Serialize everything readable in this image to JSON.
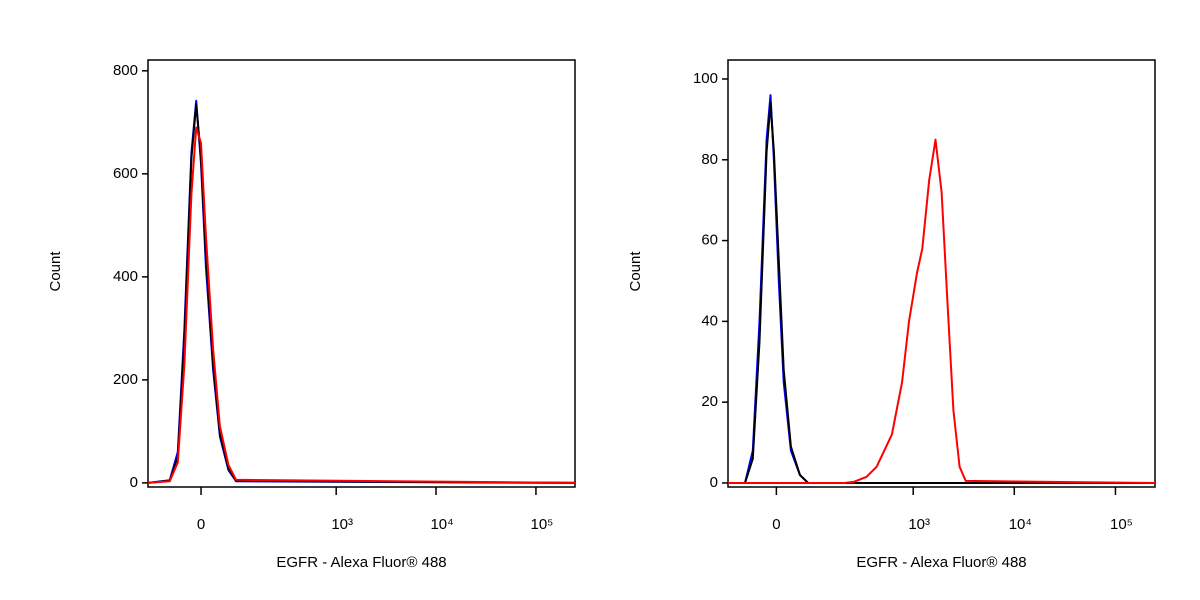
{
  "chart_data": [
    {
      "type": "line",
      "x_label": "EGFR - Alexa Fluor® 488",
      "y_label": "Count",
      "xscale": "asinh",
      "asinh_cofactor": 89,
      "xlim": [
        -138,
        246000
      ],
      "ylim": [
        -8,
        821
      ],
      "xticks": [
        0,
        {
          "value": 1000,
          "label": "10³"
        },
        {
          "value": 10000,
          "label": "10⁴"
        },
        {
          "value": 100000,
          "label": "10⁵"
        }
      ],
      "yticks": [
        0,
        200,
        400,
        600,
        800
      ],
      "series": [
        {
          "color": "#0000ff",
          "x": [
            -138,
            -70,
            -50,
            -35,
            -20,
            -10,
            0,
            10,
            25,
            40,
            60,
            80,
            246000
          ],
          "values": [
            0,
            5,
            60,
            300,
            640,
            742,
            620,
            420,
            220,
            90,
            25,
            3,
            0
          ]
        },
        {
          "color": "#000000",
          "x": [
            -138,
            -70,
            -50,
            -35,
            -20,
            -10,
            0,
            10,
            25,
            40,
            60,
            80,
            246000
          ],
          "values": [
            0,
            4,
            50,
            280,
            630,
            735,
            630,
            440,
            230,
            95,
            28,
            4,
            0
          ]
        },
        {
          "color": "#ff0000",
          "x": [
            -138,
            -70,
            -50,
            -35,
            -20,
            -10,
            0,
            10,
            25,
            40,
            60,
            80,
            246000
          ],
          "values": [
            0,
            3,
            40,
            230,
            560,
            690,
            660,
            480,
            260,
            110,
            35,
            6,
            0
          ]
        }
      ]
    },
    {
      "type": "line",
      "x_label": "EGFR - Alexa Fluor® 488",
      "y_label": "Count",
      "xscale": "asinh",
      "asinh_cofactor": 89,
      "xlim": [
        -119,
        246000
      ],
      "ylim": [
        -1,
        104.7
      ],
      "xticks": [
        0,
        {
          "value": 1000,
          "label": "10³"
        },
        {
          "value": 10000,
          "label": "10⁴"
        },
        {
          "value": 100000,
          "label": "10⁵"
        }
      ],
      "yticks": [
        0,
        20,
        40,
        60,
        80,
        100
      ],
      "series": [
        {
          "color": "#0000ff",
          "x": [
            -119,
            -69,
            -50,
            -35,
            -20,
            -12,
            -5,
            5,
            15,
            30,
            50,
            70,
            246000
          ],
          "values": [
            0,
            0,
            8,
            40,
            85,
            96,
            80,
            50,
            25,
            8,
            2,
            0,
            0
          ]
        },
        {
          "color": "#000000",
          "x": [
            -119,
            -69,
            -50,
            -35,
            -20,
            -12,
            -5,
            5,
            15,
            30,
            50,
            70,
            246000
          ],
          "values": [
            0,
            0,
            6,
            35,
            82,
            94,
            82,
            55,
            28,
            9,
            2,
            0,
            0
          ]
        },
        {
          "color": "#ff0000",
          "x": [
            -119,
            200,
            254,
            340,
            431,
            614,
            775,
            908,
            1090,
            1230,
            1440,
            1665,
            1910,
            2180,
            2500,
            2880,
            3310,
            246000
          ],
          "values": [
            0,
            0,
            0.3,
            1.5,
            4,
            12,
            25,
            40,
            52,
            58,
            75,
            85,
            72,
            45,
            18,
            4,
            0.5,
            0
          ]
        }
      ]
    }
  ]
}
